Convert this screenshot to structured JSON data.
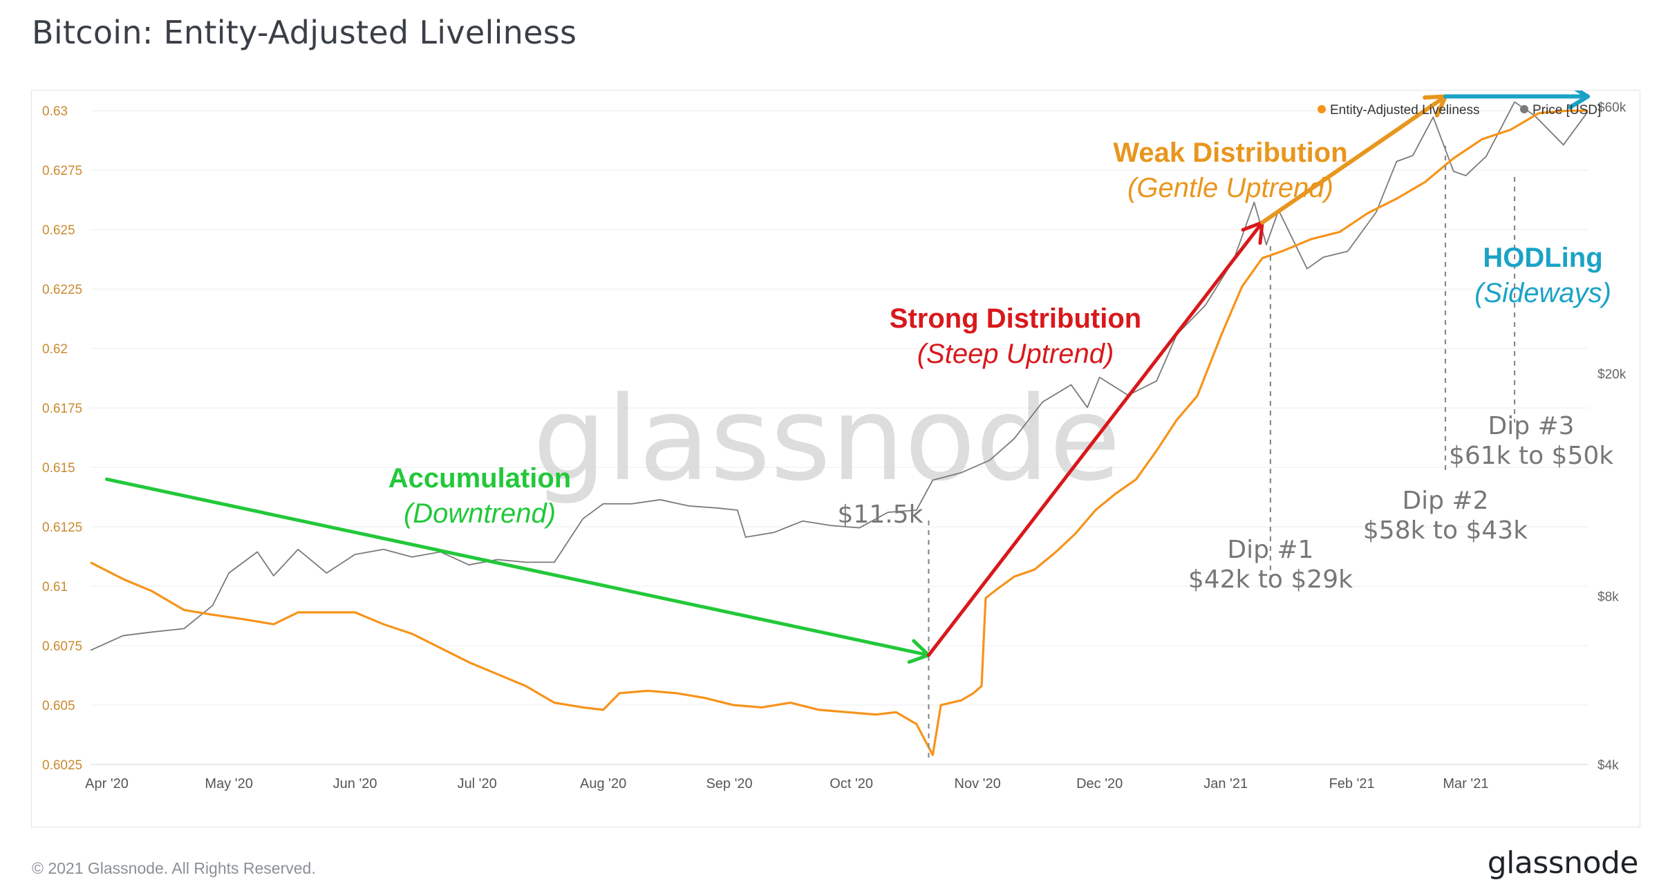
{
  "page": {
    "title": "Bitcoin: Entity-Adjusted Liveliness",
    "copyright": "© 2021 Glassnode. All Rights Reserved.",
    "logo": "glassnode",
    "watermark": "glassnode"
  },
  "colors": {
    "liveliness": "#f7931a",
    "price": "#7a7a7a",
    "accumulation": "#22c83a",
    "strong": "#d8181c",
    "weak": "#e8961e",
    "hodl": "#1aa3c6",
    "grid": "#ececec",
    "left_axis": "#c98a2e",
    "right_axis": "#666666",
    "dip_text": "#777777"
  },
  "chart_data": {
    "type": "line",
    "title": "Bitcoin: Entity-Adjusted Liveliness",
    "x_axis": {
      "type": "date",
      "range": [
        "2020-03-28",
        "2021-03-31"
      ],
      "ticks": [
        {
          "date": "2020-04-01",
          "label": "Apr '20"
        },
        {
          "date": "2020-05-01",
          "label": "May '20"
        },
        {
          "date": "2020-06-01",
          "label": "Jun '20"
        },
        {
          "date": "2020-07-01",
          "label": "Jul '20"
        },
        {
          "date": "2020-08-01",
          "label": "Aug '20"
        },
        {
          "date": "2020-09-01",
          "label": "Sep '20"
        },
        {
          "date": "2020-10-01",
          "label": "Oct '20"
        },
        {
          "date": "2020-11-01",
          "label": "Nov '20"
        },
        {
          "date": "2020-12-01",
          "label": "Dec '20"
        },
        {
          "date": "2021-01-01",
          "label": "Jan '21"
        },
        {
          "date": "2021-02-01",
          "label": "Feb '21"
        },
        {
          "date": "2021-03-01",
          "label": "Mar '21"
        }
      ]
    },
    "y_left": {
      "range": [
        0.6025,
        0.6305
      ],
      "ticks": [
        {
          "value": 0.6025,
          "label": "0.6025"
        },
        {
          "value": 0.605,
          "label": "0.605"
        },
        {
          "value": 0.6075,
          "label": "0.6075"
        },
        {
          "value": 0.61,
          "label": "0.61"
        },
        {
          "value": 0.6125,
          "label": "0.6125"
        },
        {
          "value": 0.615,
          "label": "0.615"
        },
        {
          "value": 0.6175,
          "label": "0.6175"
        },
        {
          "value": 0.62,
          "label": "0.62"
        },
        {
          "value": 0.6225,
          "label": "0.6225"
        },
        {
          "value": 0.625,
          "label": "0.625"
        },
        {
          "value": 0.6275,
          "label": "0.6275"
        },
        {
          "value": 0.63,
          "label": "0.63"
        }
      ]
    },
    "y_right": {
      "scale": "log",
      "range": [
        4000,
        62000
      ],
      "ticks": [
        {
          "value": 4000,
          "label": "$4k"
        },
        {
          "value": 8000,
          "label": "$8k"
        },
        {
          "value": 20000,
          "label": "$20k"
        },
        {
          "value": 60000,
          "label": "$60k"
        }
      ]
    },
    "legend": {
      "position": "top-right",
      "items": [
        {
          "label": "Entity-Adjusted Liveliness",
          "color": "#f7931a"
        },
        {
          "label": "Price [USD]",
          "color": "#7a7a7a"
        }
      ]
    },
    "series": [
      {
        "name": "Entity-Adjusted Liveliness",
        "axis": "left",
        "points": [
          [
            "2020-03-28",
            0.611
          ],
          [
            "2020-04-05",
            0.6103
          ],
          [
            "2020-04-12",
            0.6098
          ],
          [
            "2020-04-20",
            0.609
          ],
          [
            "2020-04-27",
            0.6088
          ],
          [
            "2020-05-05",
            0.6086
          ],
          [
            "2020-05-12",
            0.6084
          ],
          [
            "2020-05-18",
            0.6089
          ],
          [
            "2020-05-25",
            0.6089
          ],
          [
            "2020-06-01",
            0.6089
          ],
          [
            "2020-06-08",
            0.6084
          ],
          [
            "2020-06-15",
            0.608
          ],
          [
            "2020-06-22",
            0.6074
          ],
          [
            "2020-06-29",
            0.6068
          ],
          [
            "2020-07-06",
            0.6063
          ],
          [
            "2020-07-13",
            0.6058
          ],
          [
            "2020-07-20",
            0.6051
          ],
          [
            "2020-07-27",
            0.6049
          ],
          [
            "2020-08-01",
            0.6048
          ],
          [
            "2020-08-05",
            0.6055
          ],
          [
            "2020-08-12",
            0.6056
          ],
          [
            "2020-08-19",
            0.6055
          ],
          [
            "2020-08-26",
            0.6053
          ],
          [
            "2020-09-02",
            0.605
          ],
          [
            "2020-09-09",
            0.6049
          ],
          [
            "2020-09-16",
            0.6051
          ],
          [
            "2020-09-23",
            0.6048
          ],
          [
            "2020-09-30",
            0.6047
          ],
          [
            "2020-10-07",
            0.6046
          ],
          [
            "2020-10-12",
            0.6047
          ],
          [
            "2020-10-17",
            0.6042
          ],
          [
            "2020-10-21",
            0.6029
          ],
          [
            "2020-10-23",
            0.605
          ],
          [
            "2020-10-28",
            0.6052
          ],
          [
            "2020-10-31",
            0.6055
          ],
          [
            "2020-11-02",
            0.6058
          ],
          [
            "2020-11-03",
            0.6095
          ],
          [
            "2020-11-06",
            0.6099
          ],
          [
            "2020-11-10",
            0.6104
          ],
          [
            "2020-11-15",
            0.6107
          ],
          [
            "2020-11-20",
            0.6114
          ],
          [
            "2020-11-25",
            0.6122
          ],
          [
            "2020-11-30",
            0.6132
          ],
          [
            "2020-12-05",
            0.6139
          ],
          [
            "2020-12-10",
            0.6145
          ],
          [
            "2020-12-15",
            0.6157
          ],
          [
            "2020-12-20",
            0.617
          ],
          [
            "2020-12-25",
            0.618
          ],
          [
            "2020-12-31",
            0.6206
          ],
          [
            "2021-01-05",
            0.6226
          ],
          [
            "2021-01-10",
            0.6238
          ],
          [
            "2021-01-15",
            0.6241
          ],
          [
            "2021-01-22",
            0.6246
          ],
          [
            "2021-01-29",
            0.6249
          ],
          [
            "2021-02-05",
            0.6257
          ],
          [
            "2021-02-12",
            0.6263
          ],
          [
            "2021-02-19",
            0.627
          ],
          [
            "2021-02-26",
            0.628
          ],
          [
            "2021-03-05",
            0.6288
          ],
          [
            "2021-03-12",
            0.6292
          ],
          [
            "2021-03-19",
            0.6299
          ],
          [
            "2021-03-26",
            0.63
          ],
          [
            "2021-03-31",
            0.63
          ]
        ]
      },
      {
        "name": "Price [USD]",
        "axis": "right",
        "points": [
          [
            "2020-03-28",
            6400
          ],
          [
            "2020-04-05",
            6800
          ],
          [
            "2020-04-12",
            6900
          ],
          [
            "2020-04-20",
            7000
          ],
          [
            "2020-04-27",
            7700
          ],
          [
            "2020-05-01",
            8800
          ],
          [
            "2020-05-08",
            9600
          ],
          [
            "2020-05-12",
            8700
          ],
          [
            "2020-05-18",
            9700
          ],
          [
            "2020-05-25",
            8800
          ],
          [
            "2020-06-01",
            9500
          ],
          [
            "2020-06-08",
            9700
          ],
          [
            "2020-06-15",
            9400
          ],
          [
            "2020-06-22",
            9600
          ],
          [
            "2020-06-29",
            9100
          ],
          [
            "2020-07-06",
            9300
          ],
          [
            "2020-07-13",
            9200
          ],
          [
            "2020-07-20",
            9200
          ],
          [
            "2020-07-27",
            11000
          ],
          [
            "2020-08-01",
            11700
          ],
          [
            "2020-08-08",
            11700
          ],
          [
            "2020-08-15",
            11900
          ],
          [
            "2020-08-22",
            11600
          ],
          [
            "2020-08-29",
            11500
          ],
          [
            "2020-09-03",
            11400
          ],
          [
            "2020-09-05",
            10200
          ],
          [
            "2020-09-12",
            10400
          ],
          [
            "2020-09-19",
            10900
          ],
          [
            "2020-09-26",
            10700
          ],
          [
            "2020-10-03",
            10600
          ],
          [
            "2020-10-10",
            11300
          ],
          [
            "2020-10-17",
            11400
          ],
          [
            "2020-10-21",
            12900
          ],
          [
            "2020-10-28",
            13300
          ],
          [
            "2020-11-04",
            14000
          ],
          [
            "2020-11-10",
            15300
          ],
          [
            "2020-11-17",
            17800
          ],
          [
            "2020-11-24",
            19100
          ],
          [
            "2020-11-28",
            17400
          ],
          [
            "2020-12-01",
            19700
          ],
          [
            "2020-12-08",
            18300
          ],
          [
            "2020-12-15",
            19400
          ],
          [
            "2020-12-20",
            23500
          ],
          [
            "2020-12-27",
            26500
          ],
          [
            "2021-01-03",
            32000
          ],
          [
            "2021-01-08",
            40500
          ],
          [
            "2021-01-11",
            34000
          ],
          [
            "2021-01-14",
            39200
          ],
          [
            "2021-01-21",
            30800
          ],
          [
            "2021-01-25",
            32300
          ],
          [
            "2021-01-31",
            33100
          ],
          [
            "2021-02-07",
            38900
          ],
          [
            "2021-02-12",
            47900
          ],
          [
            "2021-02-16",
            49100
          ],
          [
            "2021-02-21",
            57500
          ],
          [
            "2021-02-26",
            46000
          ],
          [
            "2021-03-01",
            45200
          ],
          [
            "2021-03-06",
            48900
          ],
          [
            "2021-03-13",
            61200
          ],
          [
            "2021-03-18",
            57800
          ],
          [
            "2021-03-25",
            51300
          ],
          [
            "2021-03-31",
            58800
          ]
        ]
      }
    ],
    "annotations": [
      {
        "type": "trend-arrow",
        "from": [
          "2020-04-01",
          0.6145
        ],
        "to": [
          "2020-10-20",
          0.6071
        ],
        "color": "#22c83a",
        "title": "Accumulation",
        "subtitle": "(Downtrend)"
      },
      {
        "type": "trend-arrow",
        "from": [
          "2020-10-20",
          0.6071
        ],
        "to": [
          "2021-01-10",
          0.6253
        ],
        "color": "#d8181c",
        "title": "Strong Distribution",
        "subtitle": "(Steep Uptrend)"
      },
      {
        "type": "trend-arrow",
        "from": [
          "2021-01-10",
          0.6253
        ],
        "to": [
          "2021-02-24",
          0.6306
        ],
        "color": "#e8961e",
        "title": "Weak Distribution",
        "subtitle": "(Gentle Uptrend)"
      },
      {
        "type": "trend-arrow",
        "from": [
          "2021-02-24",
          0.6306
        ],
        "to": [
          "2021-03-31",
          0.6306
        ],
        "color": "#1aa3c6",
        "title": "HODLing",
        "subtitle": "(Sideways)"
      }
    ],
    "dip_markers": [
      {
        "date": "2020-10-20",
        "lines": [
          "$11.5k"
        ]
      },
      {
        "date": "2021-01-12",
        "lines": [
          "Dip #1",
          "$42k to $29k"
        ]
      },
      {
        "date": "2021-02-24",
        "lines": [
          "Dip #2",
          "$58k to $43k"
        ]
      },
      {
        "date": "2021-03-13",
        "lines": [
          "Dip #3",
          "$61k to $50k"
        ]
      }
    ]
  }
}
